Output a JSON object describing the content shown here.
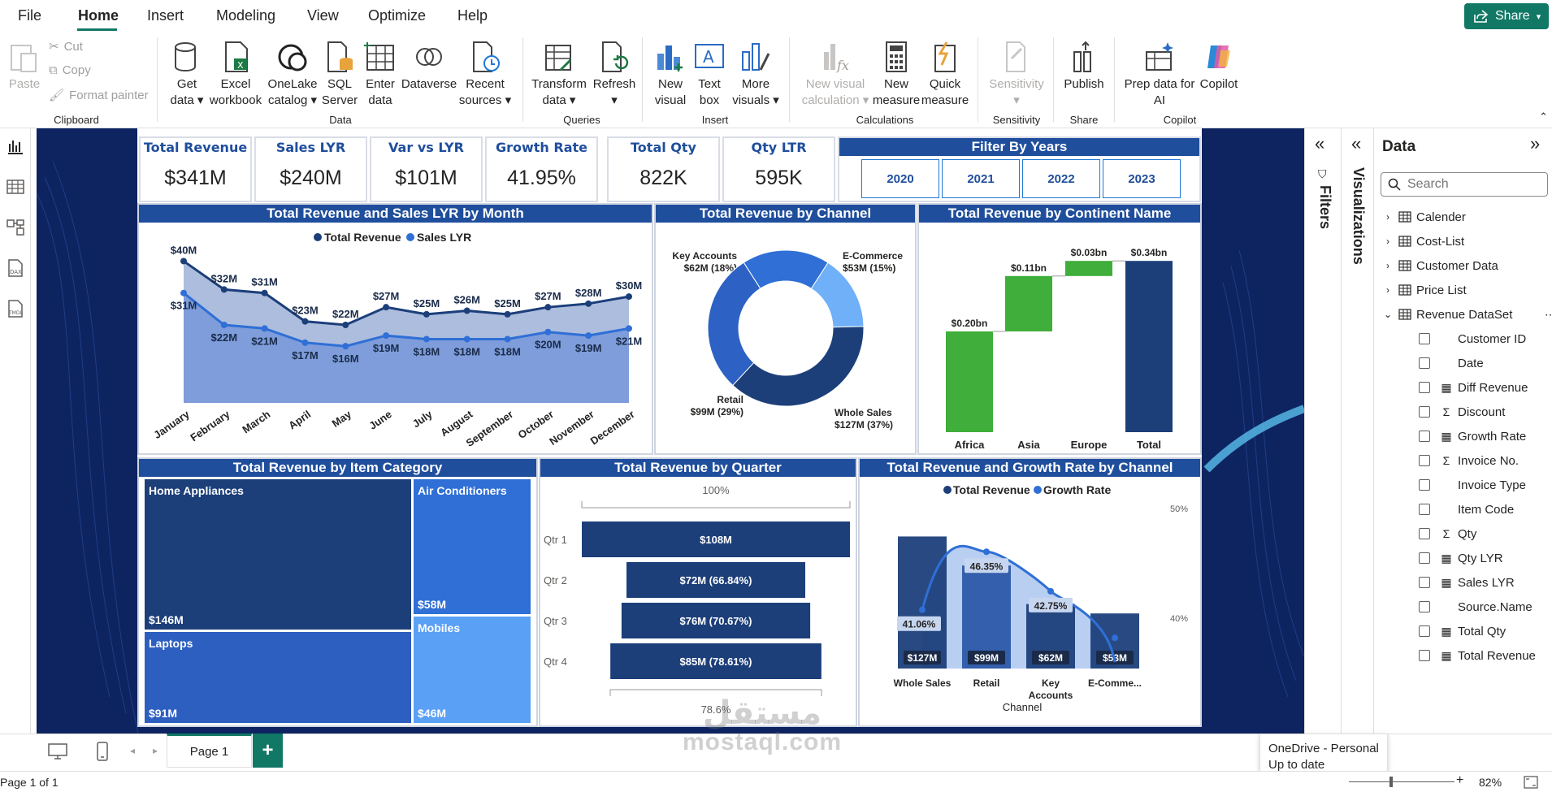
{
  "menu": {
    "items": [
      "File",
      "Home",
      "Insert",
      "Modeling",
      "View",
      "Optimize",
      "Help"
    ],
    "share_label": "Share"
  },
  "ribbon": {
    "clipboard": {
      "paste": "Paste",
      "cut": "Cut",
      "copy": "Copy",
      "format_painter": "Format painter",
      "group": "Clipboard"
    },
    "data": {
      "get_data": [
        "Get",
        "data"
      ],
      "excel": [
        "Excel",
        "workbook"
      ],
      "onelake": [
        "OneLake",
        "catalog"
      ],
      "sql": [
        "SQL",
        "Server"
      ],
      "enter": [
        "Enter",
        "data"
      ],
      "dataverse": "Dataverse",
      "recent": [
        "Recent",
        "sources"
      ],
      "group": "Data"
    },
    "queries": {
      "transform": [
        "Transform",
        "data"
      ],
      "refresh": "Refresh",
      "group": "Queries"
    },
    "insert": {
      "new_visual": [
        "New",
        "visual"
      ],
      "text_box": [
        "Text",
        "box"
      ],
      "more_visuals": [
        "More",
        "visuals"
      ],
      "group": "Insert"
    },
    "calculations": {
      "new_visual_calc": [
        "New visual",
        "calculation"
      ],
      "new_measure": [
        "New",
        "measure"
      ],
      "quick_measure": [
        "Quick",
        "measure"
      ],
      "group": "Calculations"
    },
    "sensitivity": {
      "label": "Sensitivity",
      "group": "Sensitivity"
    },
    "share": {
      "publish": "Publish",
      "group": "Share"
    },
    "copilot": {
      "prep": [
        "Prep data for",
        "AI"
      ],
      "copilot": "Copilot",
      "group": "Copilot"
    }
  },
  "kpis": [
    {
      "label": "Total Revenue",
      "value": "$341M"
    },
    {
      "label": "Sales LYR",
      "value": "$240M"
    },
    {
      "label": "Var vs LYR",
      "value": "$101M"
    },
    {
      "label": "Growth Rate",
      "value": "41.95%"
    },
    {
      "label": "Total Qty",
      "value": "822K"
    },
    {
      "label": "Qty LTR",
      "value": "595K"
    }
  ],
  "filter": {
    "title": "Filter By Years",
    "years": [
      "2020",
      "2021",
      "2022",
      "2023"
    ]
  },
  "chart_data": [
    {
      "type": "area",
      "title": "Total Revenue and Sales LYR by Month",
      "categories": [
        "January",
        "February",
        "March",
        "April",
        "May",
        "June",
        "July",
        "August",
        "September",
        "October",
        "November",
        "December"
      ],
      "series": [
        {
          "name": "Total Revenue",
          "values": [
            40,
            32,
            31,
            23,
            22,
            27,
            25,
            26,
            25,
            27,
            28,
            30
          ],
          "labels": [
            "$40M",
            "$32M",
            "$31M",
            "$23M",
            "$22M",
            "$27M",
            "$25M",
            "$26M",
            "$25M",
            "$27M",
            "$28M",
            "$30M"
          ]
        },
        {
          "name": "Sales LYR",
          "values": [
            31,
            22,
            21,
            17,
            16,
            19,
            18,
            18,
            18,
            20,
            19,
            21
          ],
          "labels": [
            "$31M",
            "$22M",
            "$21M",
            "$17M",
            "$16M",
            "$19M",
            "$18M",
            "$18M",
            "$18M",
            "$20M",
            "$19M",
            "$21M"
          ]
        }
      ],
      "legend": "top-center"
    },
    {
      "type": "pie",
      "title": "Total Revenue by Channel",
      "slices": [
        {
          "name": "Key Accounts",
          "value": 62,
          "label": [
            "Key Accounts",
            "$62M (18%)"
          ]
        },
        {
          "name": "E-Commerce",
          "value": 53,
          "label": [
            "E-Commerce",
            "$53M (15%)"
          ]
        },
        {
          "name": "Whole Sales",
          "value": 127,
          "label": [
            "Whole Sales",
            "$127M (37%)"
          ]
        },
        {
          "name": "Retail",
          "value": 99,
          "label": [
            "Retail",
            "$99M (29%)"
          ]
        }
      ]
    },
    {
      "type": "bar",
      "title": "Total Revenue by Continent Name",
      "categories": [
        "Africa",
        "Asia",
        "Europe",
        "Total"
      ],
      "values": [
        0.2,
        0.11,
        0.03,
        0.34
      ],
      "labels": [
        "$0.20bn",
        "$0.11bn",
        "$0.03bn",
        "$0.34bn"
      ]
    },
    {
      "type": "heatmap",
      "title": "Total Revenue by Item Category",
      "cells": [
        {
          "name": "Home Appliances",
          "value": 146,
          "label": "$146M"
        },
        {
          "name": "Air Conditioners",
          "value": 58,
          "label": "$58M"
        },
        {
          "name": "Laptops",
          "value": 91,
          "label": "$91M"
        },
        {
          "name": "Mobiles",
          "value": 46,
          "label": "$46M"
        }
      ]
    },
    {
      "type": "bar",
      "title": "Total Revenue by Quarter",
      "categories": [
        "Qtr 1",
        "Qtr 2",
        "Qtr 3",
        "Qtr 4"
      ],
      "values": [
        108,
        72,
        76,
        85
      ],
      "labels": [
        "$108M",
        "$72M (66.84%)",
        "$76M (70.67%)",
        "$85M (78.61%)"
      ],
      "top_label": "100%",
      "bottom_label": "78.6%"
    },
    {
      "type": "bar",
      "title": "Total Revenue and Growth Rate by Channel",
      "categories": [
        "Whole Sales",
        "Retail",
        "Key Accounts",
        "E-Comme..."
      ],
      "xlabel": "Channel",
      "series": [
        {
          "name": "Total Revenue",
          "values": [
            127,
            99,
            62,
            53
          ],
          "labels": [
            "$127M",
            "$99M",
            "$62M",
            "$53M"
          ]
        },
        {
          "name": "Growth Rate",
          "values": [
            41.06,
            46.35,
            42.75,
            38.5
          ],
          "labels": [
            "41.06%",
            "46.35%",
            "42.75%",
            ""
          ]
        }
      ],
      "y2_ticks": [
        "50%",
        "40%"
      ]
    }
  ],
  "filters_pane": {
    "label": "Filters"
  },
  "viz_pane": {
    "label": "Visualizations"
  },
  "data_pane": {
    "title": "Data",
    "search_placeholder": "Search",
    "tables": [
      "Calender",
      "Cost-List",
      "Customer Data",
      "Price List",
      "Revenue DataSet"
    ],
    "fields": [
      {
        "name": "Customer ID",
        "type": ""
      },
      {
        "name": "Date",
        "type": ""
      },
      {
        "name": "Diff Revenue",
        "type": "calc"
      },
      {
        "name": "Discount",
        "type": "sum"
      },
      {
        "name": "Growth Rate",
        "type": "calc"
      },
      {
        "name": "Invoice No.",
        "type": "sum"
      },
      {
        "name": "Invoice Type",
        "type": ""
      },
      {
        "name": "Item Code",
        "type": ""
      },
      {
        "name": "Qty",
        "type": "sum"
      },
      {
        "name": "Qty LYR",
        "type": "calc"
      },
      {
        "name": "Sales LYR",
        "type": "calc"
      },
      {
        "name": "Source.Name",
        "type": ""
      },
      {
        "name": "Total Qty",
        "type": "calc"
      },
      {
        "name": "Total Revenue",
        "type": "calc"
      }
    ]
  },
  "pages": {
    "tab": "Page 1"
  },
  "status": {
    "page": "Page 1 of 1",
    "zoom": "82%"
  },
  "toast": {
    "line1": "OneDrive - Personal",
    "line2": "Up to date"
  },
  "watermark": {
    "arabic": "مستقل",
    "latin": "mostaql.com"
  },
  "colors": {
    "accent": "#117865",
    "navy": "#1f4e9c",
    "dark": "#1c3f7a",
    "mid": "#2f6fd6",
    "light": "#5aa0f5",
    "green": "#3fae3a"
  }
}
